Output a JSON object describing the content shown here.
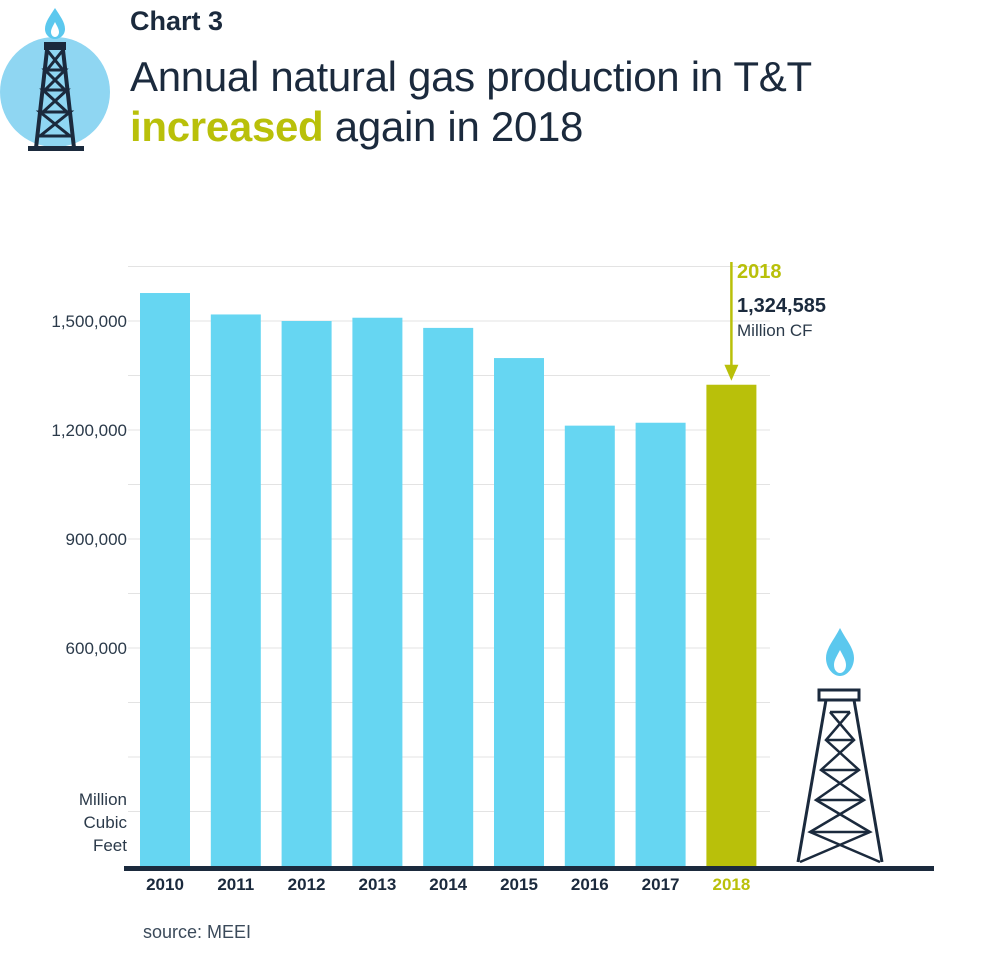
{
  "header": {
    "chart_label": "Chart 3",
    "title_line1": "Annual natural gas production in T&T",
    "title_accent": "increased",
    "title_rest": " again in 2018"
  },
  "source": "source: MEEI",
  "colors": {
    "bar": "#66d6f2",
    "highlight": "#b9c00a",
    "navy": "#1b2a3d",
    "flame": "#5bc8ee",
    "circle": "#8fd6f2",
    "grid": "#e3e3e3"
  },
  "icons": {
    "header": "gas-derrick-icon",
    "decor": "gas-derrick-icon"
  },
  "chart_data": {
    "type": "bar",
    "categories": [
      "2010",
      "2011",
      "2012",
      "2013",
      "2014",
      "2015",
      "2016",
      "2017",
      "2018"
    ],
    "values": [
      1577000,
      1518000,
      1500000,
      1509000,
      1481000,
      1398000,
      1212000,
      1220000,
      1324585
    ],
    "highlight_index": 8,
    "ylim": [
      0,
      1500000
    ],
    "yticks": [
      {
        "value": 600000,
        "label": "600,000"
      },
      {
        "value": 900000,
        "label": "900,000"
      },
      {
        "value": 1200000,
        "label": "1,200,000"
      },
      {
        "value": 1500000,
        "label": "1,500,000"
      }
    ],
    "y_unit_lines": [
      "Million",
      "Cubic",
      "Feet"
    ],
    "grid": true,
    "legend": false,
    "annotation": {
      "year": "2018",
      "value": "1,324,585",
      "unit": "Million CF"
    }
  }
}
